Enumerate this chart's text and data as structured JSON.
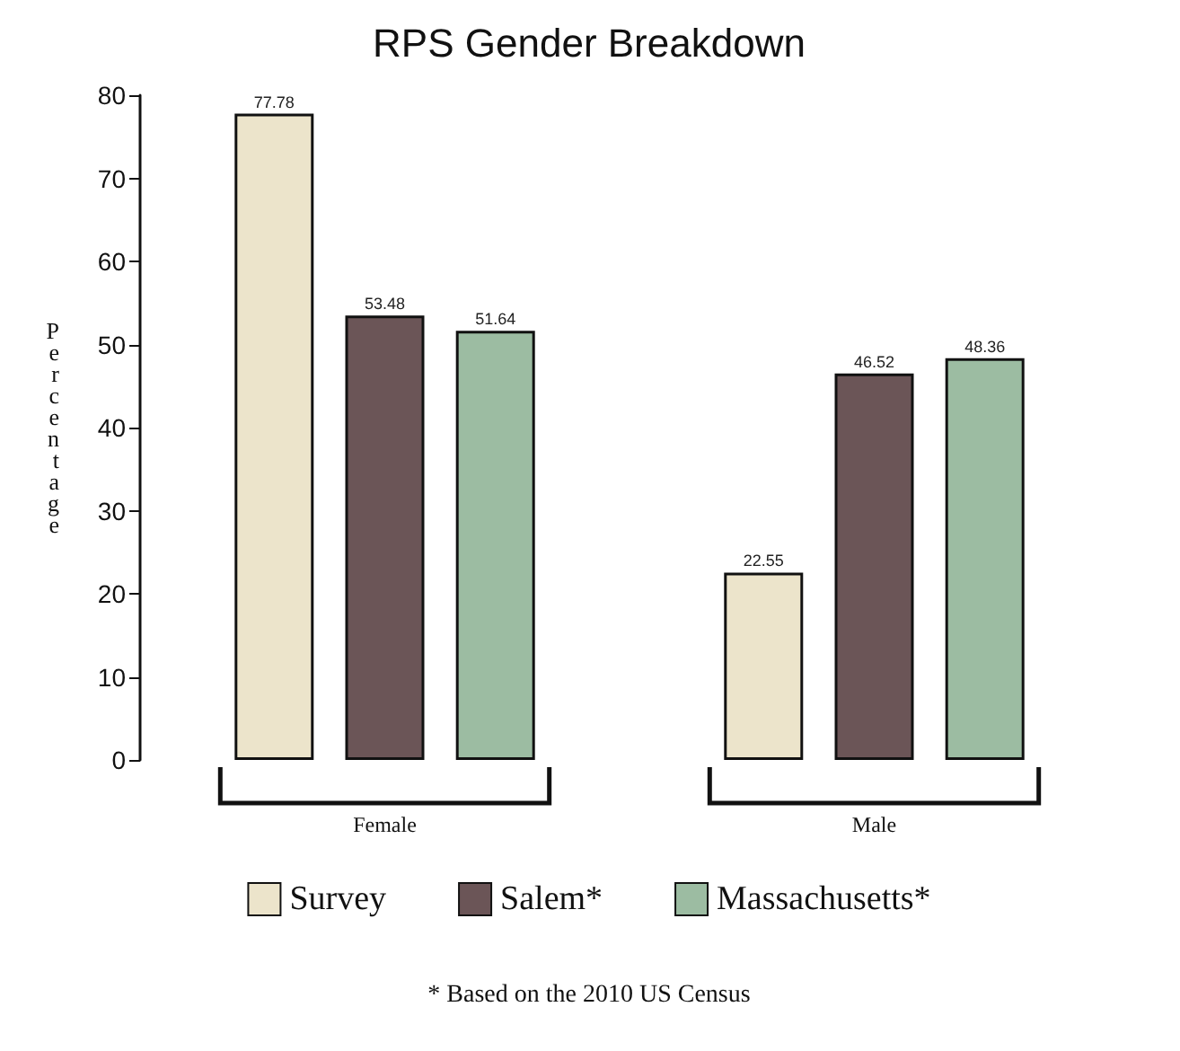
{
  "chart_data": {
    "type": "bar",
    "title": "RPS Gender Breakdown",
    "ylabel": "Percentage",
    "categories": [
      "Female",
      "Male"
    ],
    "series": [
      {
        "name": "Survey",
        "color": "#ece4cb",
        "values": [
          77.78,
          22.55
        ]
      },
      {
        "name": "Salem*",
        "color": "#6b5557",
        "values": [
          53.48,
          46.52
        ]
      },
      {
        "name": "Massachusetts*",
        "color": "#9cbca2",
        "values": [
          51.64,
          48.36
        ]
      }
    ],
    "ylim": [
      0,
      80
    ],
    "yticks": [
      0,
      10,
      20,
      30,
      40,
      50,
      60,
      70,
      80
    ],
    "grid": false,
    "legend": "bottom",
    "data_labels": true,
    "annotations": [
      "* Based on the 2010 US Census"
    ]
  }
}
